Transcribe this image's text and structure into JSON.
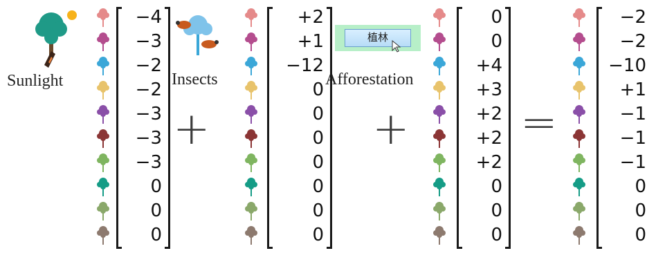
{
  "captions": {
    "sunlight": "Sunlight",
    "insects": "Insects",
    "afforestation": "Afforestation"
  },
  "afforestation_button": "植林",
  "operators": {
    "plus1": "+",
    "plus2": "+",
    "equals": "="
  },
  "species_colors": [
    "#e58a8a",
    "#b44d8e",
    "#3ba7d8",
    "#e8c36b",
    "#8a4fa8",
    "#8b3535",
    "#7fb560",
    "#159c86",
    "#8aa86a",
    "#8d7a6f"
  ],
  "vectors": {
    "sunlight": [
      "−4",
      "−3",
      "−2",
      "−2",
      "−3",
      "−3",
      "−3",
      "0",
      "0",
      "0"
    ],
    "insects": [
      "+2",
      "+1",
      "−12",
      "0",
      "0",
      "0",
      "0",
      "0",
      "0",
      "0"
    ],
    "afforestation": [
      "0",
      "0",
      "+4",
      "+3",
      "+2",
      "+2",
      "+2",
      "0",
      "0",
      "0"
    ],
    "result": [
      "−2",
      "−2",
      "−10",
      "+1",
      "−1",
      "−1",
      "−1",
      "0",
      "0",
      "0"
    ]
  }
}
